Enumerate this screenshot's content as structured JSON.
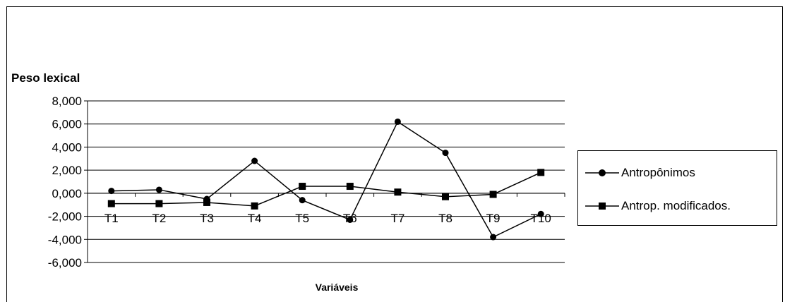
{
  "chart_data": {
    "type": "line",
    "title": "",
    "ylabel": "Peso lexical",
    "xlabel": "Variáveis",
    "categories": [
      "T1",
      "T2",
      "T3",
      "T4",
      "T5",
      "T6",
      "T7",
      "T8",
      "T9",
      "T10"
    ],
    "ylim": [
      -6,
      8
    ],
    "ytick_values": [
      8,
      6,
      4,
      2,
      0,
      -2,
      -4,
      -6
    ],
    "ytick_labels": [
      "8,000",
      "6,000",
      "4,000",
      "2,000",
      "0,000",
      "-2,000",
      "-4,000",
      "-6,000"
    ],
    "grid": true,
    "legend_position": "right",
    "series": [
      {
        "name": "Antropônimos",
        "marker": "circle",
        "values": [
          0.2,
          0.3,
          -0.5,
          2.8,
          -0.6,
          -2.3,
          6.2,
          3.5,
          -3.8,
          -1.8
        ]
      },
      {
        "name": "Antrop. modificados.",
        "marker": "square",
        "values": [
          -0.9,
          -0.9,
          -0.8,
          -1.1,
          0.6,
          0.6,
          0.1,
          -0.3,
          -0.1,
          1.8
        ]
      }
    ],
    "colors": {
      "line": "#000000",
      "grid": "#000000",
      "background": "#ffffff"
    }
  }
}
